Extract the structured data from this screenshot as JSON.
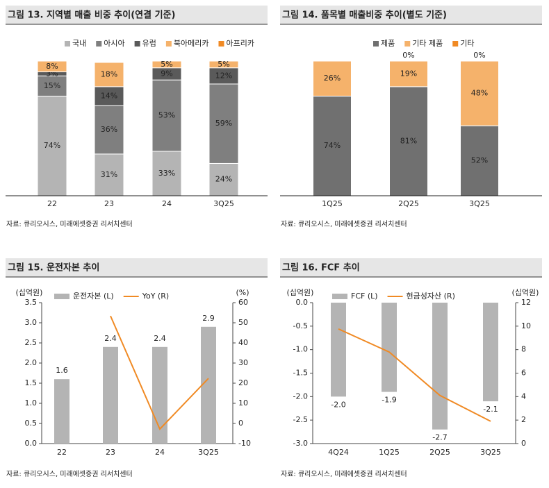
{
  "chart_data": [
    {
      "type": "stacked_bar",
      "title": "그림 13. 지역별 매출 비중 추이(연결 기준)",
      "source": "자료: 큐리오시스, 미래에셋증권 리서치센터",
      "categories": [
        "22",
        "23",
        "24",
        "3Q25"
      ],
      "ylim": [
        0,
        100
      ],
      "series": [
        {
          "name": "국내",
          "color": "#b4b4b4",
          "values": [
            74,
            31,
            33,
            24
          ],
          "value_labels": [
            "74%",
            "31%",
            "33%",
            "24%"
          ]
        },
        {
          "name": "아시아",
          "color": "#7f7f7f",
          "values": [
            15,
            36,
            53,
            59
          ],
          "value_labels": [
            "15%",
            "36%",
            "53%",
            "59%"
          ]
        },
        {
          "name": "유럽",
          "color": "#5a5a5a",
          "values": [
            3,
            14,
            9,
            12
          ],
          "value_labels": [
            "3%",
            "14%",
            "9%",
            "12%"
          ]
        },
        {
          "name": "북아메리카",
          "color": "#f5b26b",
          "values": [
            8,
            18,
            5,
            5
          ],
          "value_labels": [
            "8%",
            "18%",
            "5%",
            "5%"
          ]
        },
        {
          "name": "아프리카",
          "color": "#f08a24",
          "values": [
            0,
            0,
            0,
            0
          ],
          "value_labels": [
            null,
            null,
            null,
            null
          ]
        }
      ]
    },
    {
      "type": "stacked_bar",
      "title": "그림 14. 품목별 매출비중 추이(별도 기준)",
      "source": "자료: 큐리오시스, 미래에셋증권 리서치센터",
      "categories": [
        "1Q25",
        "2Q25",
        "3Q25"
      ],
      "ylim": [
        0,
        100
      ],
      "series": [
        {
          "name": "제품",
          "color": "#707070",
          "values": [
            74,
            81,
            52
          ],
          "value_labels": [
            "74%",
            "81%",
            "52%"
          ]
        },
        {
          "name": "기타 제품",
          "color": "#f5b26b",
          "values": [
            26,
            19,
            48
          ],
          "value_labels": [
            "26%",
            "19%",
            "48%"
          ]
        },
        {
          "name": "기타",
          "color": "#f08a24",
          "values": [
            0,
            0,
            0
          ],
          "value_labels": [
            null,
            "0%",
            "0%"
          ]
        }
      ]
    },
    {
      "type": "bar_line",
      "title": "그림 15. 운전자본 추이",
      "source": "자료: 큐리오시스, 미래에셋증권 리서치센터",
      "categories": [
        "22",
        "23",
        "24",
        "3Q25"
      ],
      "ylabel": "(십억원)",
      "y2label": "(%)",
      "ylim": [
        0,
        3.5
      ],
      "yticks": [
        {
          "value": 0,
          "label": "0.0"
        },
        0.5,
        {
          "value": 1,
          "label": "1.0"
        },
        1.5,
        {
          "value": 2,
          "label": "2.0"
        },
        2.5,
        {
          "value": 3,
          "label": "3.0"
        },
        3.5
      ],
      "y2lim": [
        -10,
        60
      ],
      "y2ticks": [
        -10,
        0,
        10,
        20,
        30,
        40,
        50,
        60
      ],
      "series": [
        {
          "name": "운전자본 (L)",
          "type": "bar",
          "color": "#b4b4b4",
          "values": [
            1.6,
            2.4,
            2.4,
            2.9
          ]
        },
        {
          "name": "YoY (R)",
          "type": "line",
          "axis": "y2",
          "color": "#f08a24",
          "values": [
            null,
            53.4,
            -2.8,
            22.4
          ]
        }
      ]
    },
    {
      "type": "bar_line",
      "title": "그림 16. FCF 추이",
      "source": "자료: 큐리오시스, 미래에셋증권 리서치센터",
      "categories": [
        "4Q24",
        "1Q25",
        "2Q25",
        "3Q25"
      ],
      "ylabel": "(십억원)",
      "y2label": "(십억원)",
      "ylim": [
        -3,
        0
      ],
      "yticks": [
        {
          "value": -3,
          "label": "-3.0"
        },
        -2.5,
        {
          "value": -2,
          "label": "-2.0"
        },
        -1.5,
        {
          "value": -1,
          "label": "-1.0"
        },
        -0.5,
        {
          "value": 0,
          "label": "0.0"
        }
      ],
      "y2lim": [
        0,
        12
      ],
      "y2ticks": [
        0,
        2,
        4,
        6,
        8,
        10,
        12
      ],
      "series": [
        {
          "name": "FCF (L)",
          "type": "bar",
          "color": "#b4b4b4",
          "values": [
            -2.0,
            -1.9,
            -2.7,
            -2.1
          ],
          "value_labels": [
            "-2.0",
            "-1.9",
            "-2.7",
            "-2.1"
          ]
        },
        {
          "name": "현금성자산 (R)",
          "type": "line",
          "axis": "y2",
          "color": "#f08a24",
          "values": [
            9.76,
            7.8,
            4.1,
            1.9
          ]
        }
      ]
    }
  ]
}
